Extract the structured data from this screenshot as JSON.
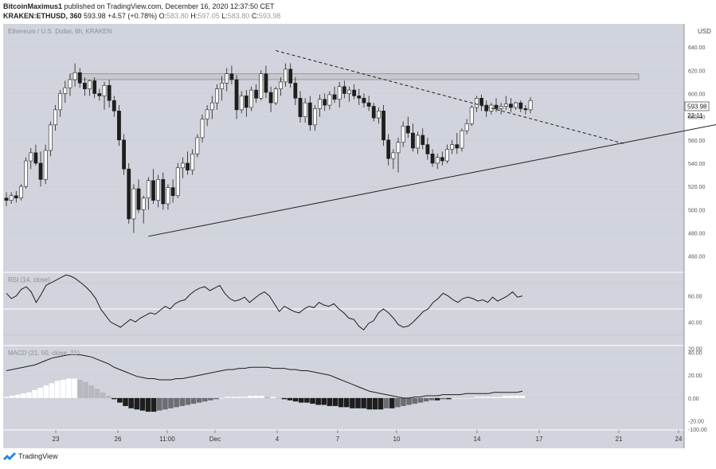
{
  "header": {
    "author": "BitcoinMaximus1",
    "published": "published on TradingView.com, December 16, 2020 12:37:50 CET",
    "symbol": "KRAKEN:ETHUSD, 360",
    "last": "593.98",
    "change": "+4.57 (+0.78%)",
    "o_label": "O:",
    "o": "583.80",
    "h_label": "H:",
    "h": "597.05",
    "l_label": "L:",
    "l": "583.80",
    "c_label": "C:",
    "c": "593.98"
  },
  "footer": {
    "brand": "TradingView"
  },
  "colors": {
    "panel_bg": "#d1d4dc",
    "candle_up": "#ffffff",
    "candle_down": "#1e1e1e",
    "line": "#1e1e1e",
    "accent_blue": "#1e88e5"
  },
  "chart_data": [
    {
      "type": "candlestick",
      "title": "Ethereum / U.S. Dollar, 6h, KRAKEN",
      "currency": "USD",
      "ylim": [
        446,
        660
      ],
      "yticks": [
        460,
        480,
        500,
        520,
        540,
        560,
        580,
        600,
        620,
        640
      ],
      "ytick_labels": [
        "460.00",
        "480.00",
        "500.00",
        "520.00",
        "540.00",
        "560.00",
        "580.00",
        "600.00",
        "620.00",
        "640.00"
      ],
      "xticks": [
        "23",
        "26",
        "11:00",
        "Dec",
        "4",
        "7",
        "10",
        "14",
        "17",
        "21",
        "24"
      ],
      "last_price_label": "593.98",
      "countdown_label": "22:11",
      "candles": [
        [
          510,
          515,
          503,
          508
        ],
        [
          508,
          515,
          505,
          512
        ],
        [
          512,
          516,
          506,
          510
        ],
        [
          510,
          522,
          508,
          520
        ],
        [
          520,
          545,
          518,
          542
        ],
        [
          542,
          553,
          535,
          549
        ],
        [
          549,
          556,
          538,
          540
        ],
        [
          540,
          550,
          520,
          526
        ],
        [
          526,
          556,
          522,
          551
        ],
        [
          551,
          576,
          546,
          573
        ],
        [
          573,
          590,
          568,
          586
        ],
        [
          586,
          603,
          580,
          600
        ],
        [
          600,
          611,
          592,
          605
        ],
        [
          605,
          617,
          598,
          612
        ],
        [
          612,
          626,
          606,
          618
        ],
        [
          618,
          622,
          605,
          609
        ],
        [
          609,
          614,
          598,
          604
        ],
        [
          604,
          612,
          598,
          611
        ],
        [
          611,
          614,
          596,
          600
        ],
        [
          600,
          604,
          594,
          598
        ],
        [
          598,
          610,
          586,
          607
        ],
        [
          607,
          612,
          588,
          594
        ],
        [
          594,
          598,
          580,
          585
        ],
        [
          585,
          590,
          555,
          560
        ],
        [
          560,
          565,
          530,
          535
        ],
        [
          535,
          540,
          488,
          492
        ],
        [
          492,
          522,
          480,
          518
        ],
        [
          518,
          526,
          497,
          500
        ],
        [
          500,
          512,
          488,
          510
        ],
        [
          510,
          528,
          500,
          525
        ],
        [
          525,
          535,
          505,
          508
        ],
        [
          508,
          530,
          502,
          526
        ],
        [
          526,
          532,
          500,
          505
        ],
        [
          505,
          522,
          500,
          519
        ],
        [
          519,
          526,
          506,
          512
        ],
        [
          512,
          540,
          510,
          536
        ],
        [
          536,
          545,
          527,
          540
        ],
        [
          540,
          550,
          530,
          534
        ],
        [
          534,
          552,
          530,
          548
        ],
        [
          548,
          565,
          545,
          562
        ],
        [
          562,
          582,
          558,
          578
        ],
        [
          578,
          590,
          572,
          586
        ],
        [
          586,
          598,
          578,
          592
        ],
        [
          592,
          608,
          586,
          604
        ],
        [
          604,
          615,
          594,
          609
        ],
        [
          609,
          622,
          602,
          617
        ],
        [
          617,
          624,
          608,
          612
        ],
        [
          612,
          616,
          578,
          586
        ],
        [
          586,
          602,
          583,
          598
        ],
        [
          598,
          603,
          580,
          588
        ],
        [
          588,
          606,
          585,
          603
        ],
        [
          603,
          608,
          592,
          596
        ],
        [
          596,
          620,
          594,
          617
        ],
        [
          617,
          624,
          596,
          601
        ],
        [
          601,
          606,
          584,
          592
        ],
        [
          592,
          606,
          590,
          604
        ],
        [
          604,
          614,
          598,
          610
        ],
        [
          610,
          626,
          606,
          621
        ],
        [
          621,
          626,
          605,
          609
        ],
        [
          609,
          614,
          590,
          596
        ],
        [
          596,
          602,
          575,
          580
        ],
        [
          580,
          596,
          575,
          592
        ],
        [
          592,
          598,
          568,
          573
        ],
        [
          573,
          590,
          568,
          587
        ],
        [
          587,
          599,
          580,
          595
        ],
        [
          595,
          600,
          585,
          590
        ],
        [
          590,
          602,
          586,
          599
        ],
        [
          599,
          606,
          592,
          595
        ],
        [
          595,
          610,
          588,
          606
        ],
        [
          606,
          611,
          596,
          600
        ],
        [
          600,
          606,
          593,
          603
        ],
        [
          603,
          608,
          595,
          598
        ],
        [
          598,
          604,
          590,
          596
        ],
        [
          596,
          600,
          588,
          592
        ],
        [
          592,
          598,
          585,
          589
        ],
        [
          589,
          592,
          576,
          579
        ],
        [
          579,
          588,
          574,
          585
        ],
        [
          585,
          590,
          555,
          560
        ],
        [
          560,
          565,
          538,
          544
        ],
        [
          544,
          552,
          535,
          549
        ],
        [
          549,
          562,
          532,
          558
        ],
        [
          558,
          576,
          554,
          572
        ],
        [
          572,
          580,
          562,
          566
        ],
        [
          566,
          574,
          550,
          553
        ],
        [
          553,
          567,
          548,
          564
        ],
        [
          564,
          570,
          552,
          556
        ],
        [
          556,
          562,
          543,
          548
        ],
        [
          548,
          552,
          537,
          540
        ],
        [
          540,
          548,
          535,
          545
        ],
        [
          545,
          550,
          538,
          542
        ],
        [
          542,
          556,
          540,
          552
        ],
        [
          552,
          560,
          548,
          556
        ],
        [
          556,
          566,
          548,
          553
        ],
        [
          553,
          570,
          550,
          568
        ],
        [
          568,
          578,
          565,
          574
        ],
        [
          574,
          590,
          572,
          588
        ],
        [
          588,
          598,
          584,
          596
        ],
        [
          596,
          599,
          585,
          590
        ],
        [
          590,
          594,
          580,
          585
        ],
        [
          585,
          592,
          582,
          590
        ],
        [
          590,
          596,
          584,
          587
        ],
        [
          587,
          592,
          582,
          589
        ],
        [
          589,
          598,
          586,
          591
        ],
        [
          591,
          596,
          584,
          588
        ],
        [
          588,
          593,
          586,
          592
        ],
        [
          592,
          594,
          584,
          587
        ],
        [
          587,
          590,
          582,
          586
        ],
        [
          586,
          597,
          583,
          594
        ]
      ],
      "horizontal_zone": [
        612,
        617
      ],
      "ascending_trendline": {
        "from_candle": 29,
        "from_price": 477,
        "to_candle": 147,
        "to_price": 575
      },
      "descending_trendline": {
        "from_candle": 55,
        "from_price": 637,
        "to_candle": 126,
        "to_price": 557
      }
    },
    {
      "type": "line",
      "title": "RSI (14, close)",
      "ylim": [
        22,
        78
      ],
      "yticks": [
        20,
        40,
        60
      ],
      "ytick_labels": [
        "20.00",
        "40.00",
        "60.00"
      ],
      "levels": [
        70,
        50,
        30
      ],
      "values": [
        62,
        58,
        60,
        65,
        67,
        63,
        55,
        61,
        68,
        70,
        72,
        74,
        76,
        75,
        73,
        70,
        67,
        63,
        58,
        50,
        45,
        40,
        38,
        36,
        39,
        42,
        40,
        43,
        45,
        47,
        46,
        49,
        52,
        50,
        54,
        56,
        57,
        61,
        64,
        66,
        67,
        64,
        66,
        68,
        62,
        58,
        56,
        57,
        59,
        55,
        58,
        61,
        63,
        60,
        54,
        48,
        52,
        50,
        48,
        47,
        50,
        52,
        51,
        55,
        53,
        52,
        54,
        50,
        47,
        43,
        42,
        37,
        34,
        39,
        41,
        47,
        50,
        47,
        43,
        38,
        36,
        37,
        40,
        44,
        48,
        50,
        55,
        58,
        62,
        60,
        57,
        55,
        58,
        59,
        58,
        56,
        57,
        55,
        59,
        56,
        58,
        60,
        63,
        59,
        60
      ]
    },
    {
      "type": "line+bar",
      "title": "MACD (21, 50, close, 21)",
      "ylim": [
        -28,
        46
      ],
      "yticks": [
        40,
        20,
        0,
        -20
      ],
      "ytick_labels": [
        "40.00",
        "20.00",
        "0.00",
        "-20.00"
      ],
      "bottom_tick_label": "-100.00",
      "macd_line": [
        24,
        25,
        26,
        27,
        28,
        29,
        31,
        33,
        35,
        36,
        37,
        38,
        38,
        38,
        37,
        36,
        34,
        32,
        30,
        27,
        25,
        23,
        21,
        19,
        18,
        17,
        17,
        16,
        16,
        16,
        17,
        17,
        18,
        19,
        20,
        21,
        22,
        23,
        24,
        25,
        25,
        26,
        26,
        27,
        27,
        27,
        27,
        26,
        26,
        26,
        25,
        25,
        24,
        24,
        23,
        22,
        21,
        20,
        18,
        16,
        14,
        12,
        10,
        8,
        6,
        5,
        4,
        3,
        2,
        1,
        0,
        0,
        1,
        1,
        2,
        2,
        2,
        3,
        3,
        3,
        3,
        4,
        4,
        4,
        4,
        4,
        5,
        5,
        5,
        5,
        5,
        6
      ],
      "histogram": [
        1,
        2,
        3,
        4,
        5,
        7,
        9,
        11,
        13,
        15,
        16,
        17,
        17,
        16,
        14,
        11,
        8,
        5,
        2,
        -1,
        -4,
        -7,
        -9,
        -10,
        -11,
        -12,
        -12,
        -11,
        -10,
        -9,
        -8,
        -7,
        -6,
        -5,
        -4,
        -3,
        -2,
        -1,
        0,
        1,
        1,
        1,
        1,
        2,
        2,
        2,
        1,
        1,
        0,
        -1,
        -2,
        -3,
        -4,
        -4,
        -5,
        -6,
        -6,
        -7,
        -7,
        -8,
        -8,
        -9,
        -9,
        -9,
        -10,
        -10,
        -10,
        -9,
        -9,
        -8,
        -7,
        -6,
        -5,
        -4,
        -3,
        -2,
        -2,
        -1,
        -1,
        0,
        0,
        0,
        0,
        1,
        1,
        1,
        1,
        1,
        2,
        2,
        2,
        2
      ]
    }
  ]
}
